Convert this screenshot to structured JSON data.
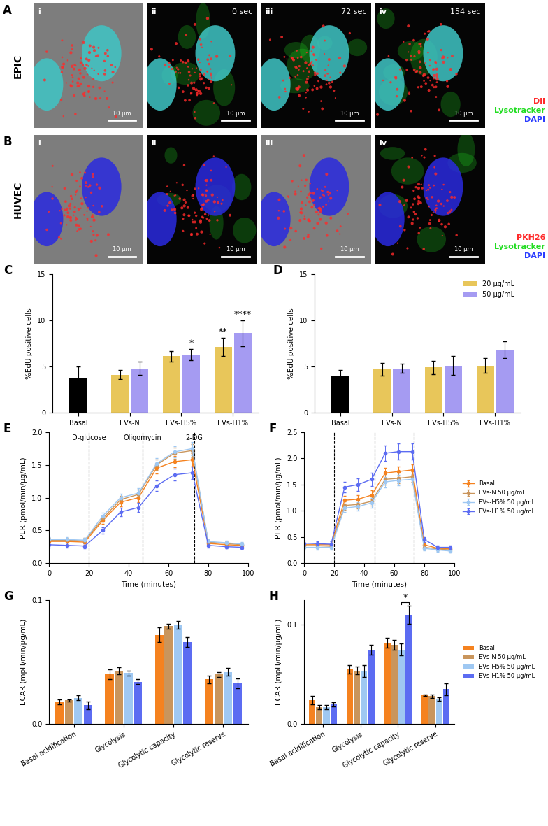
{
  "image_panels": [
    {
      "panel": "A",
      "row_label": "EPIC",
      "images": [
        {
          "label": "i",
          "scale_bar": "10 µm"
        },
        {
          "label": "ii",
          "time": "0 sec",
          "scale_bar": "10 µm"
        },
        {
          "label": "iii",
          "time": "72 sec",
          "scale_bar": "10 µm"
        },
        {
          "label": "iv",
          "time": "154 sec",
          "scale_bar": "10 µm"
        }
      ],
      "channels": [
        {
          "name": "DiI",
          "color": "#ff2a2a"
        },
        {
          "name": "Lysotracker",
          "color": "#22dd22"
        },
        {
          "name": "DAPI",
          "color": "#2a3cff"
        }
      ]
    },
    {
      "panel": "B",
      "row_label": "HUVEC",
      "images": [
        {
          "label": "i",
          "scale_bar": "10 µm"
        },
        {
          "label": "ii",
          "scale_bar": "10 µm"
        },
        {
          "label": "iii",
          "scale_bar": "10 µm"
        },
        {
          "label": "iv",
          "scale_bar": "10 µm"
        }
      ],
      "channels": [
        {
          "name": "PKH26",
          "color": "#ff2a2a"
        },
        {
          "name": "Lysotracker",
          "color": "#22dd22"
        },
        {
          "name": "DAPI",
          "color": "#2a3cff"
        }
      ]
    }
  ],
  "chart_data": [
    {
      "panel": "C",
      "type": "bar",
      "categories": [
        "Basal",
        "EVs-N",
        "EVs-H5%",
        "EVs-H1%"
      ],
      "values": [
        3.7,
        null,
        null,
        null
      ],
      "errors": [
        1.3,
        null,
        null,
        null
      ],
      "color": "#000000",
      "series": [
        {
          "color": "#e8c65a",
          "values": [
            null,
            4.1,
            6.1,
            7.1
          ],
          "errors": [
            null,
            0.5,
            0.6,
            1.0
          ]
        },
        {
          "color": "#a59bf2",
          "values": [
            null,
            4.8,
            6.3,
            8.6
          ],
          "errors": [
            null,
            0.7,
            0.6,
            1.4
          ]
        }
      ],
      "y_label": "%EdU positive cells",
      "ylim": [
        0,
        15
      ],
      "yticks": [
        0,
        5,
        10,
        15
      ],
      "annotations": [
        {
          "category": "EVs-H5%",
          "series": 1,
          "text": "*"
        },
        {
          "category": "EVs-H1%",
          "series": 0,
          "text": "**"
        },
        {
          "category": "EVs-H1%",
          "series": 1,
          "text": "****"
        }
      ]
    },
    {
      "panel": "D",
      "type": "bar",
      "categories": [
        "Basal",
        "EVs-N",
        "EVs-H5%",
        "EVs-H1%"
      ],
      "values": [
        4.0,
        null,
        null,
        null
      ],
      "errors": [
        0.6,
        null,
        null,
        null
      ],
      "color": "#000000",
      "series": [
        {
          "name": "20 µg/mL",
          "color": "#e8c65a",
          "values": [
            null,
            4.7,
            4.9,
            5.1
          ],
          "errors": [
            null,
            0.7,
            0.7,
            0.8
          ]
        },
        {
          "name": "50 µg/mL",
          "color": "#a59bf2",
          "values": [
            null,
            4.8,
            5.1,
            6.8
          ],
          "errors": [
            null,
            0.5,
            1.0,
            0.9
          ]
        }
      ],
      "y_label": "%EdU positive cells",
      "ylim": [
        0,
        15
      ],
      "yticks": [
        0,
        5,
        10,
        15
      ],
      "legend": "upper right"
    },
    {
      "panel": "E",
      "type": "line",
      "marker": "o",
      "line_style": "solid",
      "x": [
        0,
        9,
        18,
        27,
        36,
        45,
        54,
        63,
        72,
        80,
        89,
        97
      ],
      "series": [
        {
          "color": "#f5821f",
          "values": [
            0.33,
            0.33,
            0.32,
            0.65,
            0.93,
            1.0,
            1.45,
            1.55,
            1.58,
            0.3,
            0.28,
            0.27
          ],
          "errors": [
            0.04,
            0.04,
            0.04,
            0.05,
            0.06,
            0.07,
            0.08,
            0.09,
            0.1,
            0.03,
            0.03,
            0.03
          ]
        },
        {
          "color": "#c9955c",
          "values": [
            0.35,
            0.35,
            0.34,
            0.68,
            0.97,
            1.05,
            1.5,
            1.68,
            1.72,
            0.32,
            0.3,
            0.28
          ],
          "errors": [
            0.04,
            0.04,
            0.04,
            0.05,
            0.06,
            0.07,
            0.08,
            0.09,
            0.1,
            0.03,
            0.03,
            0.03
          ]
        },
        {
          "color": "#9fc8f2",
          "values": [
            0.36,
            0.36,
            0.35,
            0.72,
            1.0,
            1.07,
            1.52,
            1.7,
            1.75,
            0.33,
            0.31,
            0.29
          ],
          "errors": [
            0.04,
            0.04,
            0.04,
            0.05,
            0.06,
            0.07,
            0.08,
            0.09,
            0.1,
            0.03,
            0.03,
            0.03
          ]
        },
        {
          "color": "#5c6cf2",
          "values": [
            0.28,
            0.27,
            0.26,
            0.5,
            0.78,
            0.85,
            1.18,
            1.35,
            1.38,
            0.27,
            0.25,
            0.24
          ],
          "errors": [
            0.04,
            0.04,
            0.04,
            0.05,
            0.06,
            0.07,
            0.08,
            0.09,
            0.1,
            0.03,
            0.03,
            0.03
          ]
        }
      ],
      "events": [
        {
          "x": 20,
          "label": "D-glucose"
        },
        {
          "x": 47,
          "label": "Oligomycin"
        },
        {
          "x": 73,
          "label": "2-DG"
        }
      ],
      "x_label": "Time (minutes)",
      "y_label": "PER (pmol/min/µg/mL)",
      "xlim": [
        0,
        100
      ],
      "xticks": [
        0,
        20,
        40,
        60,
        80,
        100
      ],
      "ylim": [
        0,
        2
      ],
      "yticks": [
        {
          "value": 0,
          "label": "0.0"
        },
        0.5,
        {
          "value": 1,
          "label": "1.0"
        },
        1.5,
        {
          "value": 2,
          "label": "2.0"
        }
      ]
    },
    {
      "panel": "F",
      "type": "line",
      "marker": "o",
      "line_style": "solid",
      "x": [
        0,
        9,
        18,
        27,
        36,
        45,
        54,
        63,
        72,
        80,
        89,
        97
      ],
      "series": [
        {
          "name": "Basal",
          "color": "#f5821f",
          "values": [
            0.35,
            0.35,
            0.35,
            1.2,
            1.22,
            1.3,
            1.72,
            1.75,
            1.78,
            0.35,
            0.28,
            0.27
          ],
          "errors": [
            0.04,
            0.04,
            0.04,
            0.08,
            0.08,
            0.09,
            0.1,
            0.1,
            0.1,
            0.04,
            0.03,
            0.03
          ]
        },
        {
          "name": "EVs-N 50 µg/mL",
          "color": "#c9955c",
          "values": [
            0.33,
            0.33,
            0.32,
            1.1,
            1.12,
            1.18,
            1.6,
            1.62,
            1.65,
            0.3,
            0.27,
            0.25
          ],
          "errors": [
            0.04,
            0.04,
            0.04,
            0.08,
            0.08,
            0.09,
            0.1,
            0.1,
            0.1,
            0.04,
            0.03,
            0.03
          ]
        },
        {
          "name": "EVs-H5% 50 µg/mL",
          "color": "#9fc8f2",
          "values": [
            0.3,
            0.3,
            0.3,
            1.05,
            1.08,
            1.15,
            1.55,
            1.58,
            1.6,
            0.28,
            0.25,
            0.23
          ],
          "errors": [
            0.04,
            0.04,
            0.04,
            0.08,
            0.08,
            0.09,
            0.1,
            0.1,
            0.1,
            0.04,
            0.03,
            0.03
          ]
        },
        {
          "name": "EVs-H1% 50 ug/mL",
          "color": "#5c6cf2",
          "values": [
            0.38,
            0.37,
            0.36,
            1.45,
            1.5,
            1.6,
            2.1,
            2.13,
            2.13,
            0.45,
            0.3,
            0.3
          ],
          "errors": [
            0.05,
            0.05,
            0.05,
            0.1,
            0.12,
            0.13,
            0.15,
            0.15,
            0.15,
            0.05,
            0.04,
            0.04
          ]
        }
      ],
      "events": [
        {
          "x": 20
        },
        {
          "x": 47
        },
        {
          "x": 73
        }
      ],
      "x_label": "Time (minutes)",
      "y_label": "PER (pmol/min/µg/mL)",
      "xlim": [
        0,
        100
      ],
      "xticks": [
        0,
        20,
        40,
        60,
        80,
        100
      ],
      "ylim": [
        0,
        2.5
      ],
      "yticks": [
        {
          "value": 0,
          "label": "0.0"
        },
        0.5,
        {
          "value": 1,
          "label": "1.0"
        },
        1.5,
        {
          "value": 2,
          "label": "2.0"
        },
        2.5
      ],
      "legend": "right"
    },
    {
      "panel": "G",
      "type": "bar",
      "categories": [
        "Basal acidification",
        "Glycolysis",
        "Glycolytic capacity",
        "Glycolytic reserve"
      ],
      "series": [
        {
          "color": "#f5821f",
          "values": [
            0.018,
            0.04,
            0.072,
            0.036
          ],
          "errors": [
            0.002,
            0.004,
            0.006,
            0.003
          ]
        },
        {
          "color": "#c9955c",
          "values": [
            0.019,
            0.043,
            0.079,
            0.04
          ],
          "errors": [
            0.001,
            0.003,
            0.002,
            0.002
          ]
        },
        {
          "color": "#9fc8f2",
          "values": [
            0.021,
            0.041,
            0.08,
            0.042
          ],
          "errors": [
            0.002,
            0.002,
            0.003,
            0.003
          ]
        },
        {
          "color": "#5c6cf2",
          "values": [
            0.015,
            0.034,
            0.066,
            0.033
          ],
          "errors": [
            0.003,
            0.002,
            0.004,
            0.004
          ]
        }
      ],
      "y_label": "ECAR (mpH/min/µg/mL)",
      "ylim": [
        0,
        0.1
      ],
      "yticks": [
        {
          "value": 0,
          "label": "0.0"
        },
        0.1
      ]
    },
    {
      "panel": "H",
      "type": "bar",
      "categories": [
        "Basal acidification",
        "Glycolysis",
        "Glycolytic capacity",
        "Glycolytic reserve"
      ],
      "series": [
        {
          "name": "Basal",
          "color": "#f5821f",
          "values": [
            0.024,
            0.055,
            0.082,
            0.029
          ],
          "errors": [
            0.004,
            0.004,
            0.005,
            0.001
          ]
        },
        {
          "name": "EVs-N 50 µg/mL",
          "color": "#c9955c",
          "values": [
            0.017,
            0.054,
            0.08,
            0.028
          ],
          "errors": [
            0.002,
            0.004,
            0.005,
            0.002
          ]
        },
        {
          "name": "EVs-H5% 50 µg/mL",
          "color": "#9fc8f2",
          "values": [
            0.017,
            0.053,
            0.075,
            0.025
          ],
          "errors": [
            0.002,
            0.006,
            0.006,
            0.002
          ]
        },
        {
          "name": "EVs-H1% 50 µg/mL",
          "color": "#5c6cf2",
          "values": [
            0.02,
            0.075,
            0.11,
            0.035
          ],
          "errors": [
            0.002,
            0.005,
            0.009,
            0.006
          ]
        }
      ],
      "y_label": "ECAR (mpH/min/µg/mL)",
      "ylim": [
        0,
        0.125
      ],
      "yticks": [
        {
          "value": 0,
          "label": "0.0"
        },
        0.1
      ],
      "legend": "right",
      "annotations": [
        {
          "category": "Glycolytic capacity",
          "from_series": 2,
          "to_series": 3,
          "text": "*"
        }
      ]
    }
  ]
}
